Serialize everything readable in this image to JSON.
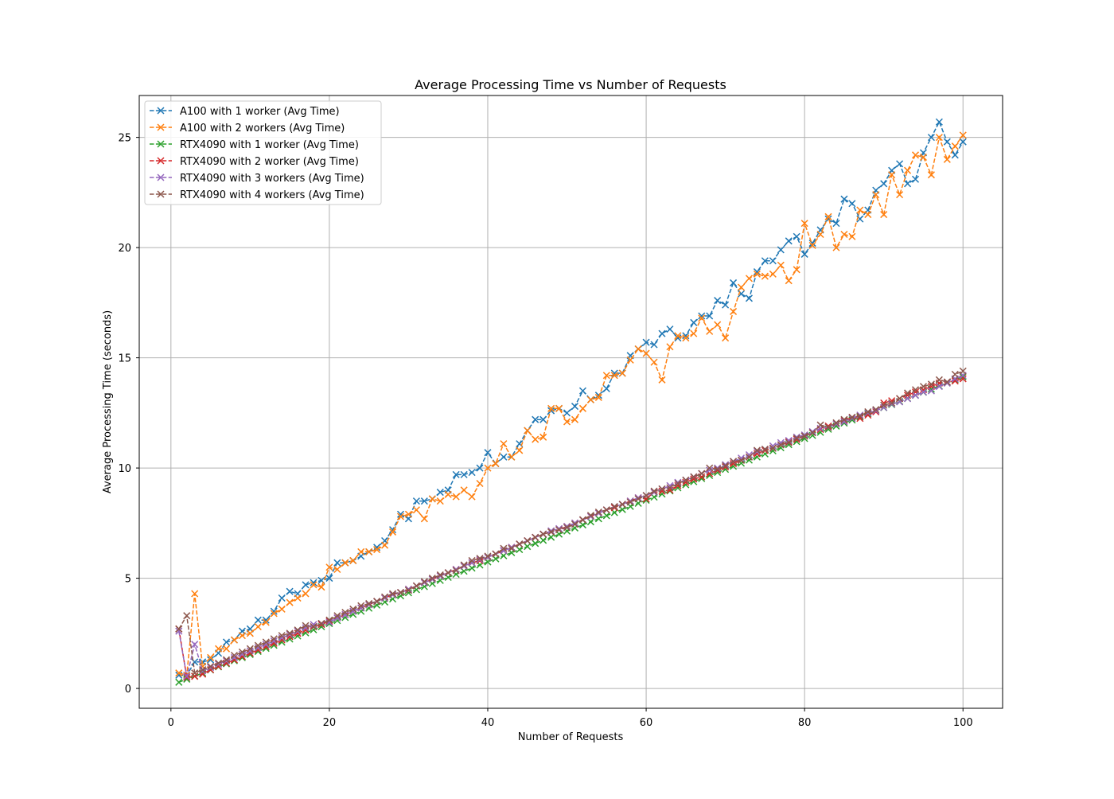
{
  "chart_data": {
    "type": "line",
    "title": "Average Processing Time vs Number of Requests",
    "xlabel": "Number of Requests",
    "ylabel": "Average Processing Time (seconds)",
    "xlim": [
      -4,
      105
    ],
    "ylim": [
      -0.9,
      26.9
    ],
    "xticks": [
      0,
      20,
      40,
      60,
      80,
      100
    ],
    "yticks": [
      0,
      5,
      10,
      15,
      20,
      25
    ],
    "grid": true,
    "legend_position": "top-left",
    "marker": "x",
    "line_style": "dashed",
    "series": [
      {
        "name": "A100 with 1 worker (Avg Time)",
        "color": "#1f77b4",
        "x": [
          1,
          2,
          3,
          4,
          5,
          6,
          7,
          8,
          9,
          10,
          11,
          12,
          13,
          14,
          15,
          16,
          17,
          18,
          19,
          20,
          21,
          22,
          23,
          24,
          25,
          26,
          27,
          28,
          29,
          30,
          31,
          32,
          33,
          34,
          35,
          36,
          37,
          38,
          39,
          40,
          41,
          42,
          43,
          44,
          45,
          46,
          47,
          48,
          49,
          50,
          51,
          52,
          53,
          54,
          55,
          56,
          57,
          58,
          59,
          60,
          61,
          62,
          63,
          64,
          65,
          66,
          67,
          68,
          69,
          70,
          71,
          72,
          73,
          74,
          75,
          76,
          77,
          78,
          79,
          80,
          81,
          82,
          83,
          84,
          85,
          86,
          87,
          88,
          89,
          90,
          91,
          92,
          93,
          94,
          95,
          96,
          97,
          98,
          99,
          100
        ],
        "y": [
          0.6,
          0.6,
          1.2,
          1.2,
          1.3,
          1.6,
          2.1,
          2.2,
          2.6,
          2.7,
          3.1,
          3.1,
          3.5,
          4.1,
          4.4,
          4.3,
          4.7,
          4.8,
          4.9,
          5.0,
          5.7,
          5.7,
          5.8,
          6.0,
          6.2,
          6.4,
          6.7,
          7.2,
          7.9,
          7.7,
          8.5,
          8.5,
          8.6,
          8.9,
          9.0,
          9.7,
          9.7,
          9.8,
          10.0,
          10.7,
          10.2,
          10.5,
          10.5,
          11.1,
          11.7,
          12.2,
          12.2,
          12.6,
          12.7,
          12.5,
          12.8,
          13.5,
          13.1,
          13.3,
          13.6,
          14.3,
          14.3,
          15.1,
          15.4,
          15.7,
          15.6,
          16.1,
          16.3,
          15.9,
          16.0,
          16.6,
          16.9,
          16.9,
          17.6,
          17.4,
          18.4,
          17.9,
          17.7,
          18.9,
          19.4,
          19.4,
          19.9,
          20.3,
          20.5,
          19.7,
          20.2,
          20.8,
          21.3,
          21.1,
          22.2,
          22.0,
          21.3,
          21.7,
          22.6,
          22.9,
          23.5,
          23.8,
          22.9,
          23.1,
          24.3,
          25.0,
          25.7,
          24.8,
          24.2,
          24.8
        ]
      },
      {
        "name": "A100 with 2 workers (Avg Time)",
        "color": "#ff7f0e",
        "x": [
          1,
          2,
          3,
          4,
          5,
          6,
          7,
          8,
          9,
          10,
          11,
          12,
          13,
          14,
          15,
          16,
          17,
          18,
          19,
          20,
          21,
          22,
          23,
          24,
          25,
          26,
          27,
          28,
          29,
          30,
          31,
          32,
          33,
          34,
          35,
          36,
          37,
          38,
          39,
          40,
          41,
          42,
          43,
          44,
          45,
          46,
          47,
          48,
          49,
          50,
          51,
          52,
          53,
          54,
          55,
          56,
          57,
          58,
          59,
          60,
          61,
          62,
          63,
          64,
          65,
          66,
          67,
          68,
          69,
          70,
          71,
          72,
          73,
          74,
          75,
          76,
          77,
          78,
          79,
          80,
          81,
          82,
          83,
          84,
          85,
          86,
          87,
          88,
          89,
          90,
          91,
          92,
          93,
          94,
          95,
          96,
          97,
          98,
          99,
          100
        ],
        "y": [
          0.7,
          0.6,
          4.3,
          1.0,
          1.4,
          1.8,
          1.8,
          2.2,
          2.4,
          2.5,
          2.8,
          3.0,
          3.4,
          3.6,
          3.9,
          4.1,
          4.3,
          4.7,
          4.6,
          5.5,
          5.4,
          5.7,
          5.8,
          6.2,
          6.2,
          6.3,
          6.5,
          7.1,
          7.8,
          7.9,
          8.1,
          7.7,
          8.6,
          8.5,
          8.8,
          8.7,
          9.0,
          8.7,
          9.3,
          10.0,
          10.2,
          11.1,
          10.5,
          10.8,
          11.7,
          11.3,
          11.4,
          12.7,
          12.7,
          12.1,
          12.2,
          12.7,
          13.1,
          13.2,
          14.2,
          14.2,
          14.3,
          14.9,
          15.4,
          15.2,
          14.8,
          14.0,
          15.5,
          16.0,
          15.9,
          16.1,
          16.8,
          16.2,
          16.5,
          15.9,
          17.1,
          18.2,
          18.6,
          18.8,
          18.7,
          18.8,
          19.2,
          18.5,
          19.0,
          21.1,
          20.1,
          20.6,
          21.4,
          20.0,
          20.6,
          20.5,
          21.7,
          21.5,
          22.4,
          21.5,
          23.3,
          22.4,
          23.5,
          24.2,
          24.1,
          23.3,
          25.0,
          24.0,
          24.6,
          25.1
        ]
      },
      {
        "name": "RTX4090 with 1 worker (Avg Time)",
        "color": "#2ca02c",
        "x": [
          1,
          2,
          3,
          4,
          5,
          6,
          7,
          8,
          9,
          10,
          11,
          12,
          13,
          14,
          15,
          16,
          17,
          18,
          19,
          20,
          21,
          22,
          23,
          24,
          25,
          26,
          27,
          28,
          29,
          30,
          31,
          32,
          33,
          34,
          35,
          36,
          37,
          38,
          39,
          40,
          41,
          42,
          43,
          44,
          45,
          46,
          47,
          48,
          49,
          50,
          51,
          52,
          53,
          54,
          55,
          56,
          57,
          58,
          59,
          60,
          61,
          62,
          63,
          64,
          65,
          66,
          67,
          68,
          69,
          70,
          71,
          72,
          73,
          74,
          75,
          76,
          77,
          78,
          79,
          80,
          81,
          82,
          83,
          84,
          85,
          86,
          87,
          88,
          89,
          90,
          91,
          92,
          93,
          94,
          95,
          96,
          97,
          98,
          99,
          100
        ],
        "y": [
          0.28,
          0.42,
          0.56,
          0.7,
          0.84,
          0.98,
          1.12,
          1.26,
          1.4,
          1.54,
          1.68,
          1.82,
          1.96,
          2.1,
          2.24,
          2.38,
          2.52,
          2.66,
          2.8,
          2.94,
          3.08,
          3.22,
          3.36,
          3.5,
          3.64,
          3.78,
          3.92,
          4.06,
          4.2,
          4.34,
          4.48,
          4.62,
          4.76,
          4.9,
          5.04,
          5.18,
          5.32,
          5.46,
          5.6,
          5.74,
          5.88,
          6.02,
          6.16,
          6.3,
          6.44,
          6.58,
          6.72,
          6.86,
          7.0,
          7.14,
          7.28,
          7.42,
          7.56,
          7.7,
          7.84,
          7.98,
          8.12,
          8.26,
          8.4,
          8.54,
          8.68,
          8.82,
          8.96,
          9.1,
          9.24,
          9.38,
          9.52,
          9.66,
          9.8,
          9.94,
          10.08,
          10.22,
          10.36,
          10.5,
          10.64,
          10.78,
          10.92,
          11.06,
          11.2,
          11.34,
          11.48,
          11.62,
          11.76,
          11.9,
          12.04,
          12.18,
          12.32,
          12.46,
          12.6,
          12.74,
          12.88,
          13.02,
          13.16,
          13.3,
          13.44,
          13.58,
          13.72,
          13.86,
          14.0,
          14.14
        ]
      },
      {
        "name": "RTX4090 with 2 worker (Avg Time)",
        "color": "#d62728",
        "x": [
          1,
          2,
          3,
          4,
          5,
          6,
          7,
          8,
          9,
          10,
          11,
          12,
          13,
          14,
          15,
          16,
          17,
          18,
          19,
          20,
          21,
          22,
          23,
          24,
          25,
          26,
          27,
          28,
          29,
          30,
          31,
          32,
          33,
          34,
          35,
          36,
          37,
          38,
          39,
          40,
          41,
          42,
          43,
          44,
          45,
          46,
          47,
          48,
          49,
          50,
          51,
          52,
          53,
          54,
          55,
          56,
          57,
          58,
          59,
          60,
          61,
          62,
          63,
          64,
          65,
          66,
          67,
          68,
          69,
          70,
          71,
          72,
          73,
          74,
          75,
          76,
          77,
          78,
          79,
          80,
          81,
          82,
          83,
          84,
          85,
          86,
          87,
          88,
          89,
          90,
          91,
          92,
          93,
          94,
          95,
          96,
          97,
          98,
          99,
          100
        ],
        "y": [
          2.7,
          0.5,
          0.55,
          0.65,
          0.85,
          1.0,
          1.15,
          1.3,
          1.45,
          1.6,
          1.75,
          1.9,
          2.05,
          2.2,
          2.35,
          2.5,
          2.65,
          2.8,
          2.9,
          3.05,
          3.2,
          3.35,
          3.5,
          3.65,
          3.8,
          3.95,
          4.1,
          4.25,
          4.35,
          4.5,
          4.65,
          4.8,
          4.95,
          5.1,
          5.25,
          5.4,
          5.55,
          5.7,
          5.8,
          5.95,
          6.1,
          6.25,
          6.4,
          6.55,
          6.7,
          6.85,
          7.0,
          7.1,
          7.2,
          7.35,
          7.5,
          7.65,
          7.8,
          7.95,
          8.1,
          8.2,
          8.35,
          8.5,
          8.65,
          8.6,
          8.9,
          8.95,
          9.0,
          9.2,
          9.35,
          9.5,
          9.6,
          9.75,
          9.9,
          10.05,
          10.2,
          10.35,
          10.5,
          10.65,
          10.8,
          10.9,
          11.05,
          11.2,
          11.3,
          11.45,
          11.6,
          11.75,
          11.9,
          12.0,
          12.15,
          12.3,
          12.25,
          12.4,
          12.55,
          12.95,
          13.05,
          13.15,
          13.3,
          13.45,
          13.55,
          13.7,
          13.85,
          13.9,
          13.95,
          14.05
        ]
      },
      {
        "name": "RTX4090 with 3 workers (Avg Time)",
        "color": "#9467bd",
        "x": [
          1,
          2,
          3,
          4,
          5,
          6,
          7,
          8,
          9,
          10,
          11,
          12,
          13,
          14,
          15,
          16,
          17,
          18,
          19,
          20,
          21,
          22,
          23,
          24,
          25,
          26,
          27,
          28,
          29,
          30,
          31,
          32,
          33,
          34,
          35,
          36,
          37,
          38,
          39,
          40,
          41,
          42,
          43,
          44,
          45,
          46,
          47,
          48,
          49,
          50,
          51,
          52,
          53,
          54,
          55,
          56,
          57,
          58,
          59,
          60,
          61,
          62,
          63,
          64,
          65,
          66,
          67,
          68,
          69,
          70,
          71,
          72,
          73,
          74,
          75,
          76,
          77,
          78,
          79,
          80,
          81,
          82,
          83,
          84,
          85,
          86,
          87,
          88,
          89,
          90,
          91,
          92,
          93,
          94,
          95,
          96,
          97,
          98,
          99,
          100
        ],
        "y": [
          2.6,
          0.55,
          2.0,
          0.8,
          0.95,
          1.1,
          1.25,
          1.4,
          1.55,
          1.7,
          1.85,
          2.0,
          2.15,
          2.3,
          2.45,
          2.6,
          2.75,
          2.9,
          2.95,
          3.0,
          3.2,
          3.35,
          3.5,
          3.65,
          3.8,
          3.95,
          4.1,
          4.25,
          4.35,
          4.5,
          4.65,
          4.8,
          4.95,
          5.1,
          5.25,
          5.4,
          5.55,
          5.7,
          5.85,
          5.95,
          6.1,
          6.25,
          6.4,
          6.55,
          6.7,
          6.85,
          7.0,
          7.15,
          7.25,
          7.35,
          7.5,
          7.65,
          7.8,
          7.95,
          8.1,
          8.25,
          8.35,
          8.5,
          8.65,
          8.75,
          8.9,
          9.05,
          9.2,
          9.35,
          9.45,
          9.6,
          9.75,
          9.9,
          10.0,
          10.15,
          10.3,
          10.45,
          10.6,
          10.75,
          10.85,
          11.0,
          11.15,
          11.25,
          11.4,
          11.5,
          11.65,
          11.8,
          11.85,
          12.0,
          12.1,
          12.25,
          12.4,
          12.5,
          12.6,
          12.75,
          12.9,
          13.0,
          13.15,
          13.3,
          13.45,
          13.5,
          13.7,
          13.85,
          14.05,
          14.2
        ]
      },
      {
        "name": "RTX4090 with 4 workers (Avg Time)",
        "color": "#8c564b",
        "x": [
          1,
          2,
          3,
          4,
          5,
          6,
          7,
          8,
          9,
          10,
          11,
          12,
          13,
          14,
          15,
          16,
          17,
          18,
          19,
          20,
          21,
          22,
          23,
          24,
          25,
          26,
          27,
          28,
          29,
          30,
          31,
          32,
          33,
          34,
          35,
          36,
          37,
          38,
          39,
          40,
          41,
          42,
          43,
          44,
          45,
          46,
          47,
          48,
          49,
          50,
          51,
          52,
          53,
          54,
          55,
          56,
          57,
          58,
          59,
          60,
          61,
          62,
          63,
          64,
          65,
          66,
          67,
          68,
          69,
          70,
          71,
          72,
          73,
          74,
          75,
          76,
          77,
          78,
          79,
          80,
          81,
          82,
          83,
          84,
          85,
          86,
          87,
          88,
          89,
          90,
          91,
          92,
          93,
          94,
          95,
          96,
          97,
          98,
          99,
          100
        ],
        "y": [
          2.7,
          3.3,
          0.7,
          0.85,
          1.0,
          1.15,
          1.3,
          1.5,
          1.65,
          1.8,
          1.95,
          2.1,
          2.25,
          2.4,
          2.5,
          2.65,
          2.85,
          2.8,
          2.95,
          3.1,
          3.3,
          3.45,
          3.6,
          3.75,
          3.85,
          3.95,
          4.15,
          4.3,
          4.35,
          4.45,
          4.65,
          4.85,
          5.0,
          5.15,
          5.25,
          5.35,
          5.6,
          5.8,
          5.9,
          6.0,
          6.1,
          6.35,
          6.35,
          6.55,
          6.7,
          6.85,
          7.0,
          7.1,
          7.2,
          7.3,
          7.45,
          7.65,
          7.85,
          8.0,
          8.1,
          8.25,
          8.35,
          8.45,
          8.6,
          8.75,
          8.95,
          9.05,
          9.1,
          9.3,
          9.45,
          9.6,
          9.75,
          10.0,
          9.95,
          10.1,
          10.3,
          10.35,
          10.5,
          10.8,
          10.85,
          10.9,
          11.05,
          11.15,
          11.35,
          11.45,
          11.6,
          11.95,
          11.85,
          12.05,
          12.2,
          12.3,
          12.35,
          12.55,
          12.65,
          12.85,
          12.95,
          13.15,
          13.4,
          13.55,
          13.7,
          13.8,
          14.0,
          13.9,
          14.25,
          14.4
        ]
      }
    ]
  }
}
